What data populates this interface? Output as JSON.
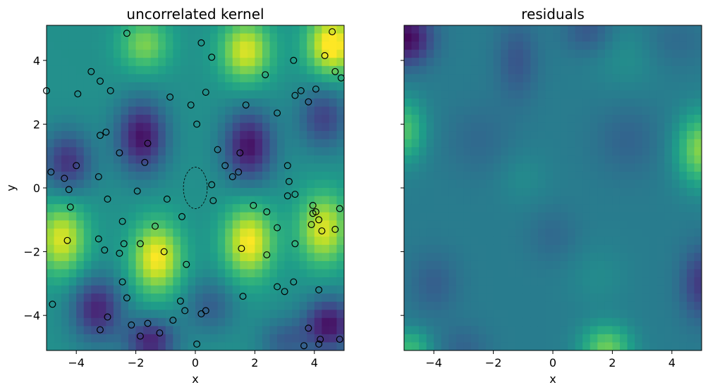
{
  "chart_data": [
    {
      "type": "heatmap",
      "title": "uncorrelated kernel",
      "xlabel": "x",
      "ylabel": "y",
      "xlim": [
        -5,
        5
      ],
      "ylim": [
        -5.1,
        5.1
      ],
      "xticks": [
        -4,
        -2,
        0,
        2,
        4
      ],
      "yticks": [
        -4,
        -2,
        0,
        2,
        4
      ],
      "colormap": "viridis",
      "field": {
        "background": 0.5,
        "bumps": [
          {
            "x": 4.6,
            "y": 4.5,
            "a": 0.55,
            "sx": 0.6,
            "sy": 0.7
          },
          {
            "x": 1.7,
            "y": 4.3,
            "a": 0.45,
            "sx": 0.6,
            "sy": 0.7
          },
          {
            "x": -1.7,
            "y": 4.5,
            "a": 0.3,
            "sx": 0.6,
            "sy": 0.6
          },
          {
            "x": -1.8,
            "y": 1.6,
            "a": -0.45,
            "sx": 0.6,
            "sy": 0.8
          },
          {
            "x": 1.8,
            "y": 1.3,
            "a": -0.45,
            "sx": 0.6,
            "sy": 0.8
          },
          {
            "x": -4.3,
            "y": 0.8,
            "a": -0.35,
            "sx": 0.6,
            "sy": 0.7
          },
          {
            "x": 4.3,
            "y": 2.2,
            "a": -0.3,
            "sx": 0.6,
            "sy": 0.7
          },
          {
            "x": -4.5,
            "y": -1.6,
            "a": 0.45,
            "sx": 0.6,
            "sy": 0.8
          },
          {
            "x": -1.3,
            "y": -2.2,
            "a": 0.5,
            "sx": 0.6,
            "sy": 0.8
          },
          {
            "x": 1.8,
            "y": -1.7,
            "a": 0.5,
            "sx": 0.6,
            "sy": 0.8
          },
          {
            "x": 4.3,
            "y": -1.3,
            "a": 0.45,
            "sx": 0.6,
            "sy": 0.8
          },
          {
            "x": -3.3,
            "y": -3.8,
            "a": -0.4,
            "sx": 0.6,
            "sy": 0.7
          },
          {
            "x": -1.5,
            "y": -4.8,
            "a": -0.4,
            "sx": 0.6,
            "sy": 0.5
          },
          {
            "x": 4.5,
            "y": -4.3,
            "a": -0.45,
            "sx": 0.6,
            "sy": 0.6
          },
          {
            "x": 0.5,
            "y": -3.7,
            "a": -0.2,
            "sx": 0.6,
            "sy": 0.6
          },
          {
            "x": 3.0,
            "y": -4.8,
            "a": -0.2,
            "sx": 0.6,
            "sy": 0.5
          }
        ]
      },
      "points": [
        [
          -2.3,
          4.85
        ],
        [
          0.2,
          4.55
        ],
        [
          0.55,
          4.1
        ],
        [
          -3.5,
          3.65
        ],
        [
          -3.2,
          3.35
        ],
        [
          -2.85,
          3.05
        ],
        [
          -3.95,
          2.95
        ],
        [
          -5.0,
          3.05
        ],
        [
          4.6,
          4.9
        ],
        [
          4.35,
          4.15
        ],
        [
          3.3,
          4.0
        ],
        [
          4.7,
          3.65
        ],
        [
          4.9,
          3.45
        ],
        [
          2.35,
          3.55
        ],
        [
          -0.85,
          2.85
        ],
        [
          -0.15,
          2.6
        ],
        [
          0.35,
          3.0
        ],
        [
          1.7,
          2.6
        ],
        [
          2.75,
          2.35
        ],
        [
          3.35,
          2.9
        ],
        [
          3.55,
          3.05
        ],
        [
          3.8,
          2.7
        ],
        [
          4.05,
          3.1
        ],
        [
          0.05,
          2.0
        ],
        [
          -3.0,
          1.75
        ],
        [
          -3.2,
          1.65
        ],
        [
          -1.6,
          1.4
        ],
        [
          0.75,
          1.2
        ],
        [
          -2.55,
          1.1
        ],
        [
          -1.7,
          0.8
        ],
        [
          1.5,
          1.1
        ],
        [
          -4.0,
          0.7
        ],
        [
          -4.85,
          0.5
        ],
        [
          -4.4,
          0.3
        ],
        [
          -3.25,
          0.35
        ],
        [
          1.0,
          0.7
        ],
        [
          1.45,
          0.5
        ],
        [
          1.25,
          0.35
        ],
        [
          3.1,
          0.7
        ],
        [
          0.55,
          0.1
        ],
        [
          -4.25,
          -0.05
        ],
        [
          -1.95,
          -0.1
        ],
        [
          -4.2,
          -0.6
        ],
        [
          -2.95,
          -0.35
        ],
        [
          -0.95,
          -0.35
        ],
        [
          0.6,
          -0.4
        ],
        [
          3.15,
          0.2
        ],
        [
          3.1,
          -0.25
        ],
        [
          3.35,
          -0.2
        ],
        [
          3.95,
          -0.55
        ],
        [
          4.05,
          -0.75
        ],
        [
          4.85,
          -0.65
        ],
        [
          1.95,
          -0.55
        ],
        [
          2.4,
          -0.75
        ],
        [
          -0.45,
          -0.9
        ],
        [
          3.95,
          -0.8
        ],
        [
          4.15,
          -1.0
        ],
        [
          3.9,
          -1.15
        ],
        [
          4.25,
          -1.35
        ],
        [
          4.7,
          -1.3
        ],
        [
          2.75,
          -1.25
        ],
        [
          -2.45,
          -1.05
        ],
        [
          -1.35,
          -1.2
        ],
        [
          -4.3,
          -1.65
        ],
        [
          -3.25,
          -1.6
        ],
        [
          -3.05,
          -1.95
        ],
        [
          -2.4,
          -1.75
        ],
        [
          -1.85,
          -1.75
        ],
        [
          -1.05,
          -2.0
        ],
        [
          1.55,
          -1.9
        ],
        [
          3.35,
          -1.75
        ],
        [
          -2.55,
          -2.05
        ],
        [
          2.4,
          -2.1
        ],
        [
          -0.3,
          -2.4
        ],
        [
          -2.45,
          -2.95
        ],
        [
          2.75,
          -3.1
        ],
        [
          3.0,
          -3.25
        ],
        [
          3.3,
          -2.95
        ],
        [
          4.15,
          -3.2
        ],
        [
          1.6,
          -3.4
        ],
        [
          -2.3,
          -3.45
        ],
        [
          -0.5,
          -3.55
        ],
        [
          -0.35,
          -3.85
        ],
        [
          0.35,
          -3.85
        ],
        [
          0.2,
          -3.95
        ],
        [
          -4.8,
          -3.65
        ],
        [
          -2.95,
          -4.05
        ],
        [
          -0.75,
          -4.15
        ],
        [
          -2.15,
          -4.3
        ],
        [
          -1.6,
          -4.25
        ],
        [
          -3.2,
          -4.45
        ],
        [
          -1.2,
          -4.55
        ],
        [
          -1.85,
          -4.65
        ],
        [
          3.8,
          -4.4
        ],
        [
          4.2,
          -4.75
        ],
        [
          4.15,
          -4.9
        ],
        [
          4.85,
          -4.75
        ],
        [
          3.65,
          -4.95
        ],
        [
          0.05,
          -4.9
        ]
      ],
      "ellipse": {
        "cx": 0,
        "cy": 0,
        "rx": 0.4,
        "ry": 0.65
      }
    },
    {
      "type": "heatmap",
      "title": "residuals",
      "xlabel": "x",
      "xlim": [
        -5,
        5
      ],
      "ylim": [
        -5.1,
        5.1
      ],
      "xticks": [
        -4,
        -2,
        0,
        2,
        4
      ],
      "yticks": [
        -4,
        -2,
        0,
        2,
        4
      ],
      "ytick_labels_visible": false,
      "colormap": "viridis",
      "field": {
        "background": 0.42,
        "bumps": [
          {
            "x": -4.9,
            "y": 4.7,
            "a": -0.4,
            "sx": 0.6,
            "sy": 0.6
          },
          {
            "x": -1.2,
            "y": 4.0,
            "a": -0.15,
            "sx": 0.5,
            "sy": 0.9
          },
          {
            "x": 1.2,
            "y": 4.9,
            "a": -0.15,
            "sx": 0.6,
            "sy": 0.5
          },
          {
            "x": 2.5,
            "y": 4.2,
            "a": 0.08,
            "sx": 0.8,
            "sy": 0.8
          },
          {
            "x": 4.0,
            "y": 4.6,
            "a": -0.08,
            "sx": 0.8,
            "sy": 0.6
          },
          {
            "x": -5.0,
            "y": 1.8,
            "a": 0.3,
            "sx": 0.5,
            "sy": 0.7
          },
          {
            "x": 5.0,
            "y": 1.2,
            "a": 0.4,
            "sx": 0.6,
            "sy": 0.8
          },
          {
            "x": 2.5,
            "y": 1.5,
            "a": -0.1,
            "sx": 0.8,
            "sy": 0.8
          },
          {
            "x": -2.5,
            "y": 1.5,
            "a": -0.08,
            "sx": 0.8,
            "sy": 0.8
          },
          {
            "x": 0.0,
            "y": -1.5,
            "a": -0.08,
            "sx": 0.6,
            "sy": 0.6
          },
          {
            "x": 1.5,
            "y": -2.8,
            "a": 0.06,
            "sx": 0.7,
            "sy": 0.7
          },
          {
            "x": -1.0,
            "y": 0.3,
            "a": 0.06,
            "sx": 0.6,
            "sy": 0.6
          },
          {
            "x": -4.0,
            "y": -3.0,
            "a": -0.12,
            "sx": 0.6,
            "sy": 0.7
          },
          {
            "x": 1.8,
            "y": -5.0,
            "a": 0.35,
            "sx": 0.6,
            "sy": 0.5
          },
          {
            "x": -4.8,
            "y": -5.0,
            "a": 0.25,
            "sx": 0.5,
            "sy": 0.4
          },
          {
            "x": 5.0,
            "y": -3.0,
            "a": -0.25,
            "sx": 0.5,
            "sy": 0.8
          },
          {
            "x": -3.0,
            "y": -5.0,
            "a": -0.1,
            "sx": 0.6,
            "sy": 0.5
          }
        ]
      }
    }
  ]
}
